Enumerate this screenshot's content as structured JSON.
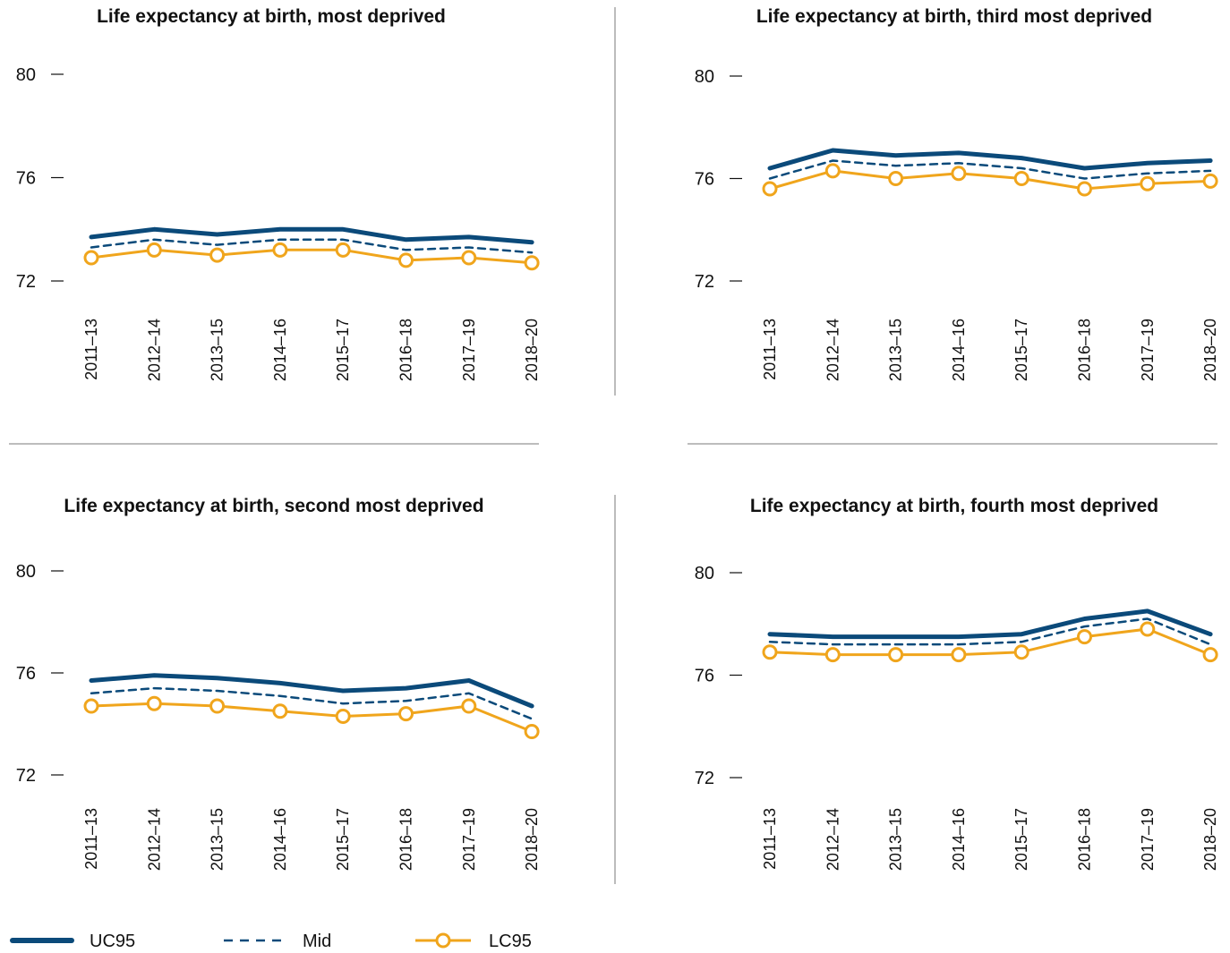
{
  "colors": {
    "uc95": "#0b4a7a",
    "mid": "#0b4a7a",
    "lc95": "#f0a51c",
    "divider": "#7a7a7a"
  },
  "legend": {
    "uc95": "UC95",
    "mid": "Mid",
    "lc95": "LC95"
  },
  "chart_data": [
    {
      "type": "line",
      "title": "Life expectancy at birth, most deprived",
      "x": [
        "2011–13",
        "2012–14",
        "2013–15",
        "2014–16",
        "2015–17",
        "2016–18",
        "2017–19",
        "2018–20"
      ],
      "yticks": [
        72,
        76,
        80
      ],
      "ylim": [
        72,
        80
      ],
      "series": [
        {
          "name": "UC95",
          "values": [
            73.7,
            74.0,
            73.8,
            74.0,
            74.0,
            73.6,
            73.7,
            73.5
          ]
        },
        {
          "name": "Mid",
          "values": [
            73.3,
            73.6,
            73.4,
            73.6,
            73.6,
            73.2,
            73.3,
            73.1
          ]
        },
        {
          "name": "LC95",
          "values": [
            72.9,
            73.2,
            73.0,
            73.2,
            73.2,
            72.8,
            72.9,
            72.7
          ]
        }
      ]
    },
    {
      "type": "line",
      "title": "Life expectancy at birth, third most deprived",
      "x": [
        "2011–13",
        "2012–14",
        "2013–15",
        "2014–16",
        "2015–17",
        "2016–18",
        "2017–19",
        "2018–20"
      ],
      "yticks": [
        72,
        76,
        80
      ],
      "ylim": [
        72,
        80
      ],
      "series": [
        {
          "name": "UC95",
          "values": [
            76.4,
            77.1,
            76.9,
            77.0,
            76.8,
            76.4,
            76.6,
            76.7
          ]
        },
        {
          "name": "Mid",
          "values": [
            76.0,
            76.7,
            76.5,
            76.6,
            76.4,
            76.0,
            76.2,
            76.3
          ]
        },
        {
          "name": "LC95",
          "values": [
            75.6,
            76.3,
            76.0,
            76.2,
            76.0,
            75.6,
            75.8,
            75.9
          ]
        }
      ]
    },
    {
      "type": "line",
      "title": "Life expectancy at birth, second most deprived",
      "x": [
        "2011–13",
        "2012–14",
        "2013–15",
        "2014–16",
        "2015–17",
        "2016–18",
        "2017–19",
        "2018–20"
      ],
      "yticks": [
        72,
        76,
        80
      ],
      "ylim": [
        72,
        80
      ],
      "series": [
        {
          "name": "UC95",
          "values": [
            75.7,
            75.9,
            75.8,
            75.6,
            75.3,
            75.4,
            75.7,
            74.7
          ]
        },
        {
          "name": "Mid",
          "values": [
            75.2,
            75.4,
            75.3,
            75.1,
            74.8,
            74.9,
            75.2,
            74.2
          ]
        },
        {
          "name": "LC95",
          "values": [
            74.7,
            74.8,
            74.7,
            74.5,
            74.3,
            74.4,
            74.7,
            73.7
          ]
        }
      ]
    },
    {
      "type": "line",
      "title": "Life expectancy at birth, fourth most deprived",
      "x": [
        "2011–13",
        "2012–14",
        "2013–15",
        "2014–16",
        "2015–17",
        "2016–18",
        "2017–19",
        "2018–20"
      ],
      "yticks": [
        72,
        76,
        80
      ],
      "ylim": [
        72,
        80
      ],
      "series": [
        {
          "name": "UC95",
          "values": [
            77.6,
            77.5,
            77.5,
            77.5,
            77.6,
            78.2,
            78.5,
            77.6
          ]
        },
        {
          "name": "Mid",
          "values": [
            77.3,
            77.2,
            77.2,
            77.2,
            77.3,
            77.9,
            78.2,
            77.2
          ]
        },
        {
          "name": "LC95",
          "values": [
            76.9,
            76.8,
            76.8,
            76.8,
            76.9,
            77.5,
            77.8,
            76.8
          ]
        }
      ]
    }
  ]
}
